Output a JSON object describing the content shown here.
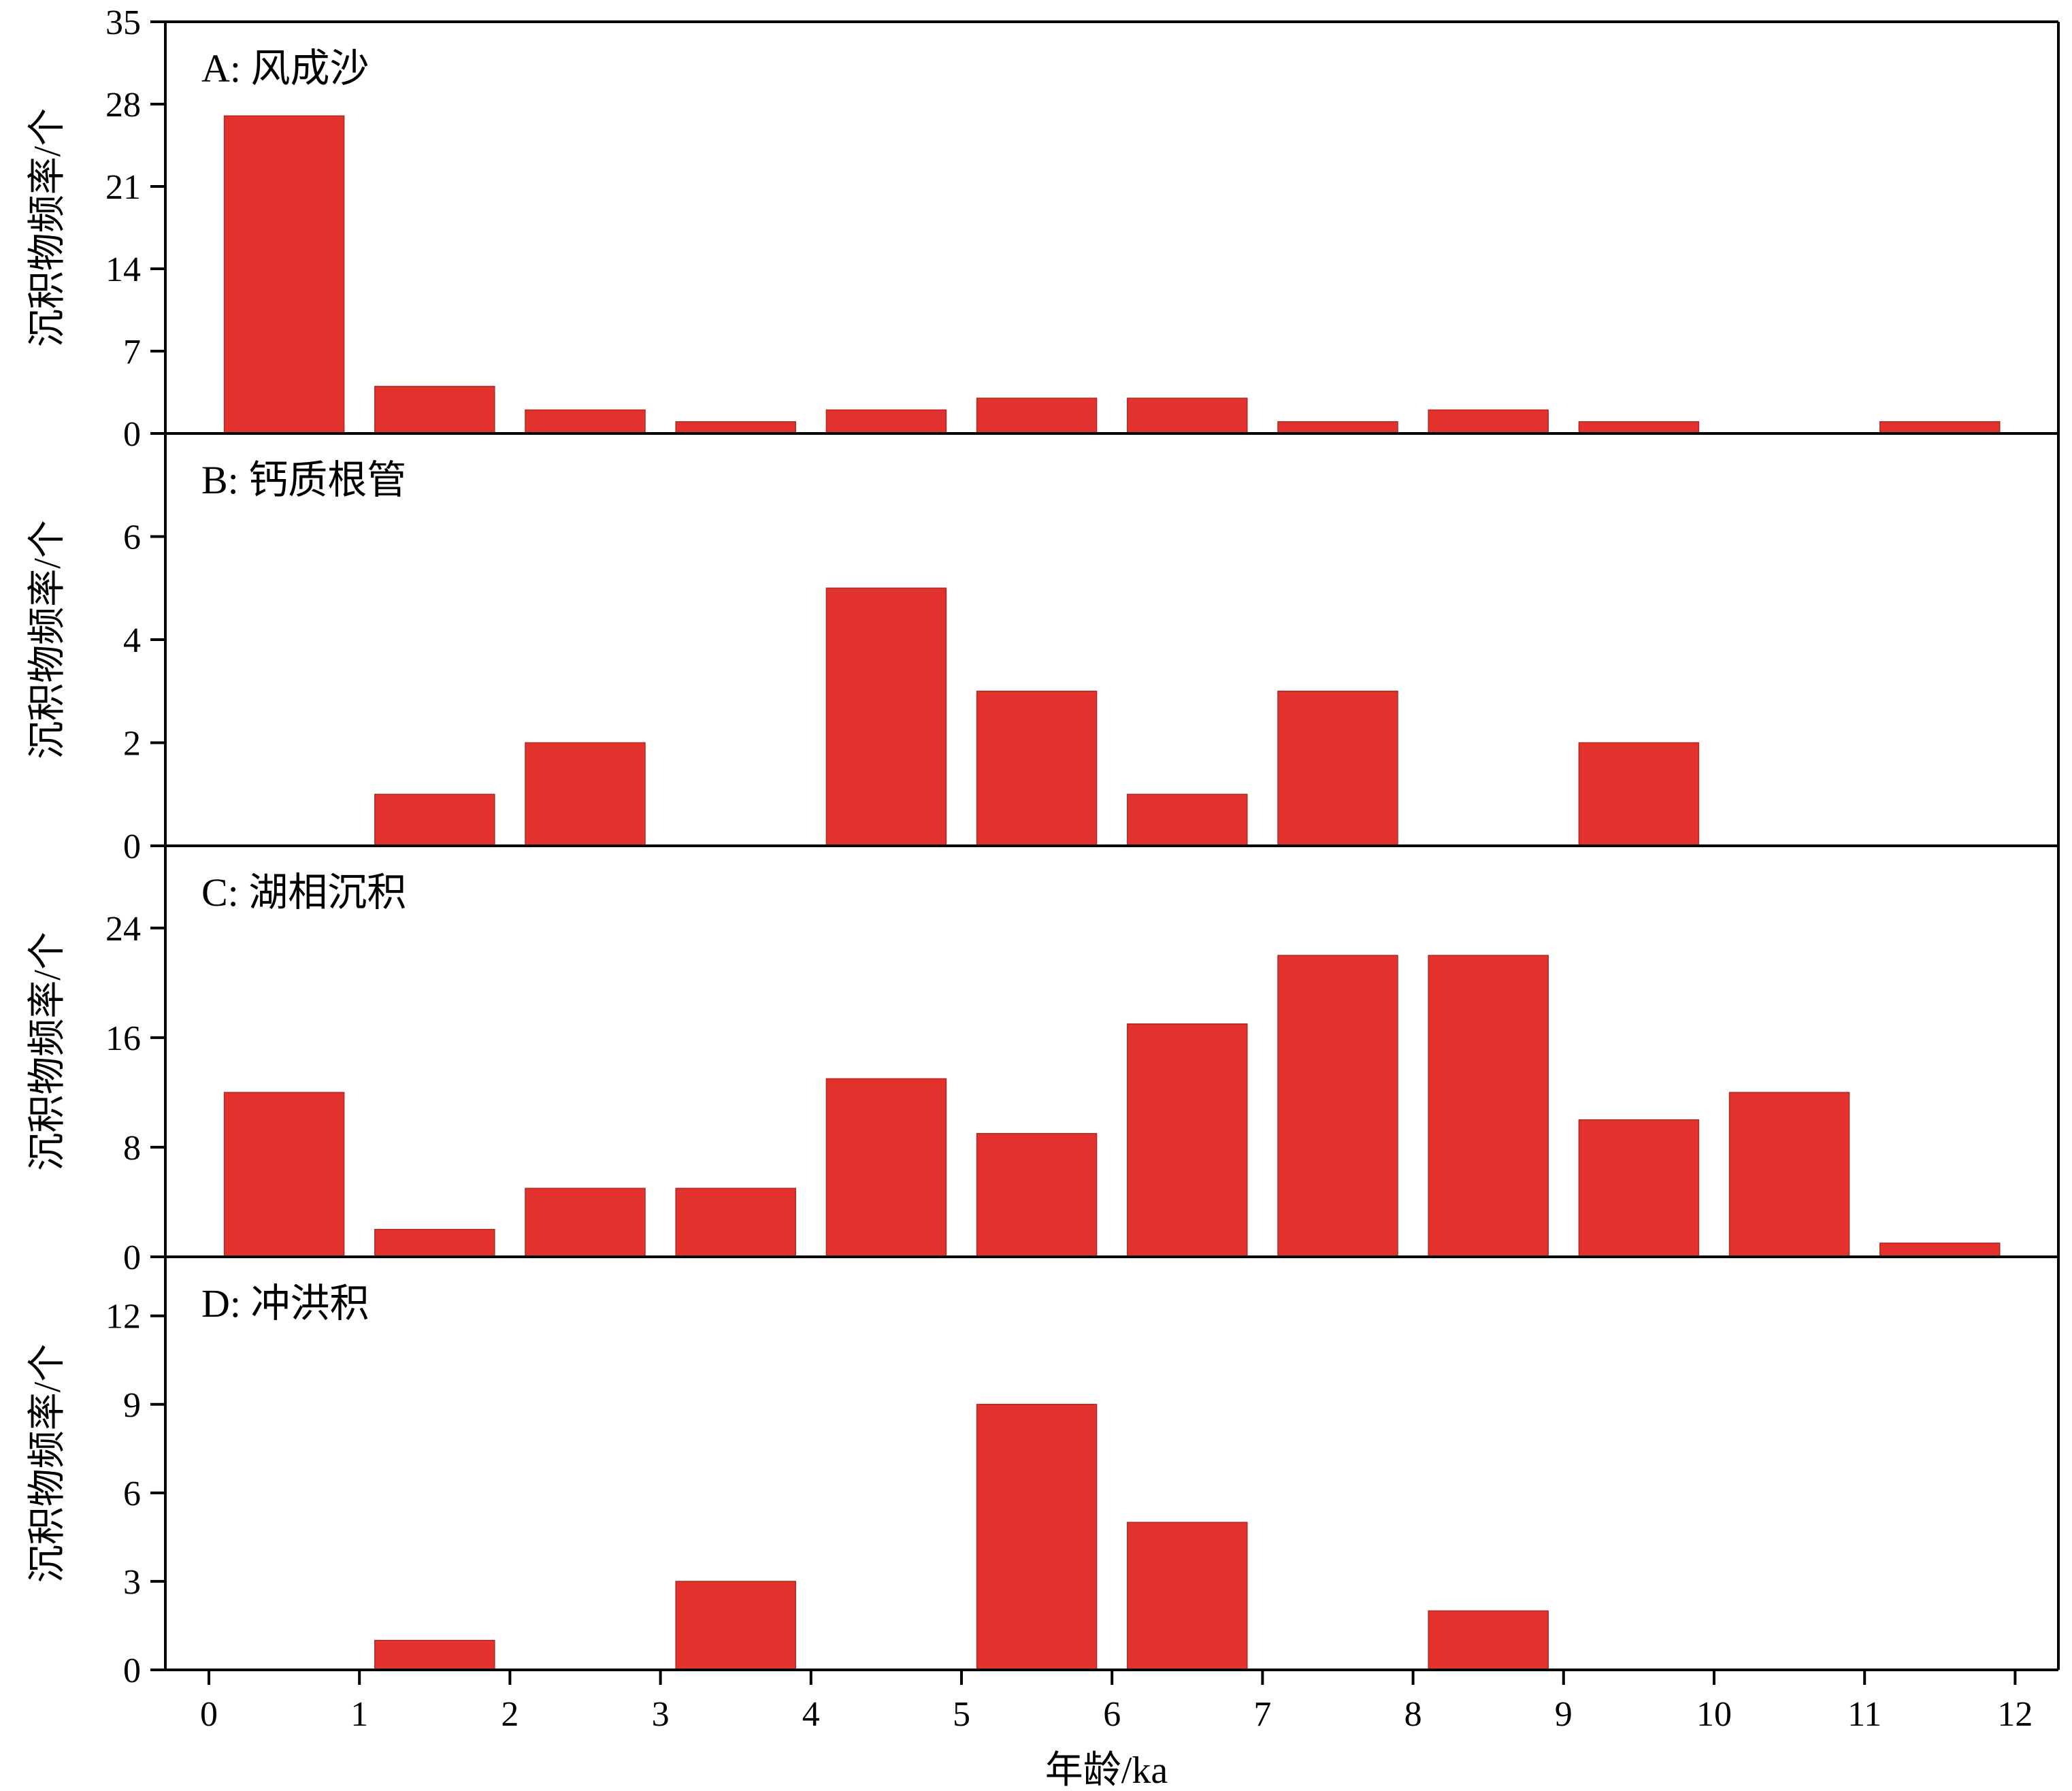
{
  "figure": {
    "xlabel": "年龄/ka",
    "bar_color": "#E3312D",
    "x_ticks": [
      "0",
      "1",
      "2",
      "3",
      "4",
      "5",
      "6",
      "7",
      "8",
      "9",
      "10",
      "11",
      "12"
    ]
  },
  "chart_data": [
    {
      "type": "bar",
      "title": "A: 风成沙",
      "ylabel": "沉积物频率/个",
      "xlabel": "年龄/ka",
      "categories": [
        "0-1",
        "1-2",
        "2-3",
        "3-4",
        "4-5",
        "5-6",
        "6-7",
        "7-8",
        "8-9",
        "9-10",
        "10-11",
        "11-12"
      ],
      "values": [
        27,
        4,
        2,
        1,
        2,
        3,
        3,
        1,
        2,
        1,
        0,
        1
      ],
      "ylim": [
        0,
        35
      ],
      "yticks": [
        0,
        7,
        14,
        21,
        28,
        35
      ],
      "grid": false
    },
    {
      "type": "bar",
      "title": "B: 钙质根管",
      "ylabel": "沉积物频率/个",
      "xlabel": "年龄/ka",
      "categories": [
        "0-1",
        "1-2",
        "2-3",
        "3-4",
        "4-5",
        "5-6",
        "6-7",
        "7-8",
        "8-9",
        "9-10",
        "10-11",
        "11-12"
      ],
      "values": [
        0,
        1,
        2,
        0,
        5,
        3,
        1,
        3,
        0,
        2,
        0,
        0
      ],
      "ylim": [
        0,
        8
      ],
      "yticks": [
        0,
        2,
        4,
        6
      ],
      "grid": false
    },
    {
      "type": "bar",
      "title": "C: 湖相沉积",
      "ylabel": "沉积物频率/个",
      "xlabel": "年龄/ka",
      "categories": [
        "0-1",
        "1-2",
        "2-3",
        "3-4",
        "4-5",
        "5-6",
        "6-7",
        "7-8",
        "8-9",
        "9-10",
        "10-11",
        "11-12"
      ],
      "values": [
        12,
        2,
        5,
        5,
        13,
        9,
        17,
        22,
        22,
        10,
        12,
        1
      ],
      "ylim": [
        0,
        30
      ],
      "yticks": [
        0,
        8,
        16,
        24
      ],
      "grid": false
    },
    {
      "type": "bar",
      "title": "D: 冲洪积",
      "ylabel": "沉积物频率/个",
      "xlabel": "年龄/ka",
      "categories": [
        "0-1",
        "1-2",
        "2-3",
        "3-4",
        "4-5",
        "5-6",
        "6-7",
        "7-8",
        "8-9",
        "9-10",
        "10-11",
        "11-12"
      ],
      "values": [
        0,
        1,
        0,
        3,
        0,
        9,
        5,
        0,
        2,
        0,
        0,
        0
      ],
      "ylim": [
        0,
        14
      ],
      "yticks": [
        0,
        3,
        6,
        9,
        12
      ],
      "grid": false
    }
  ]
}
